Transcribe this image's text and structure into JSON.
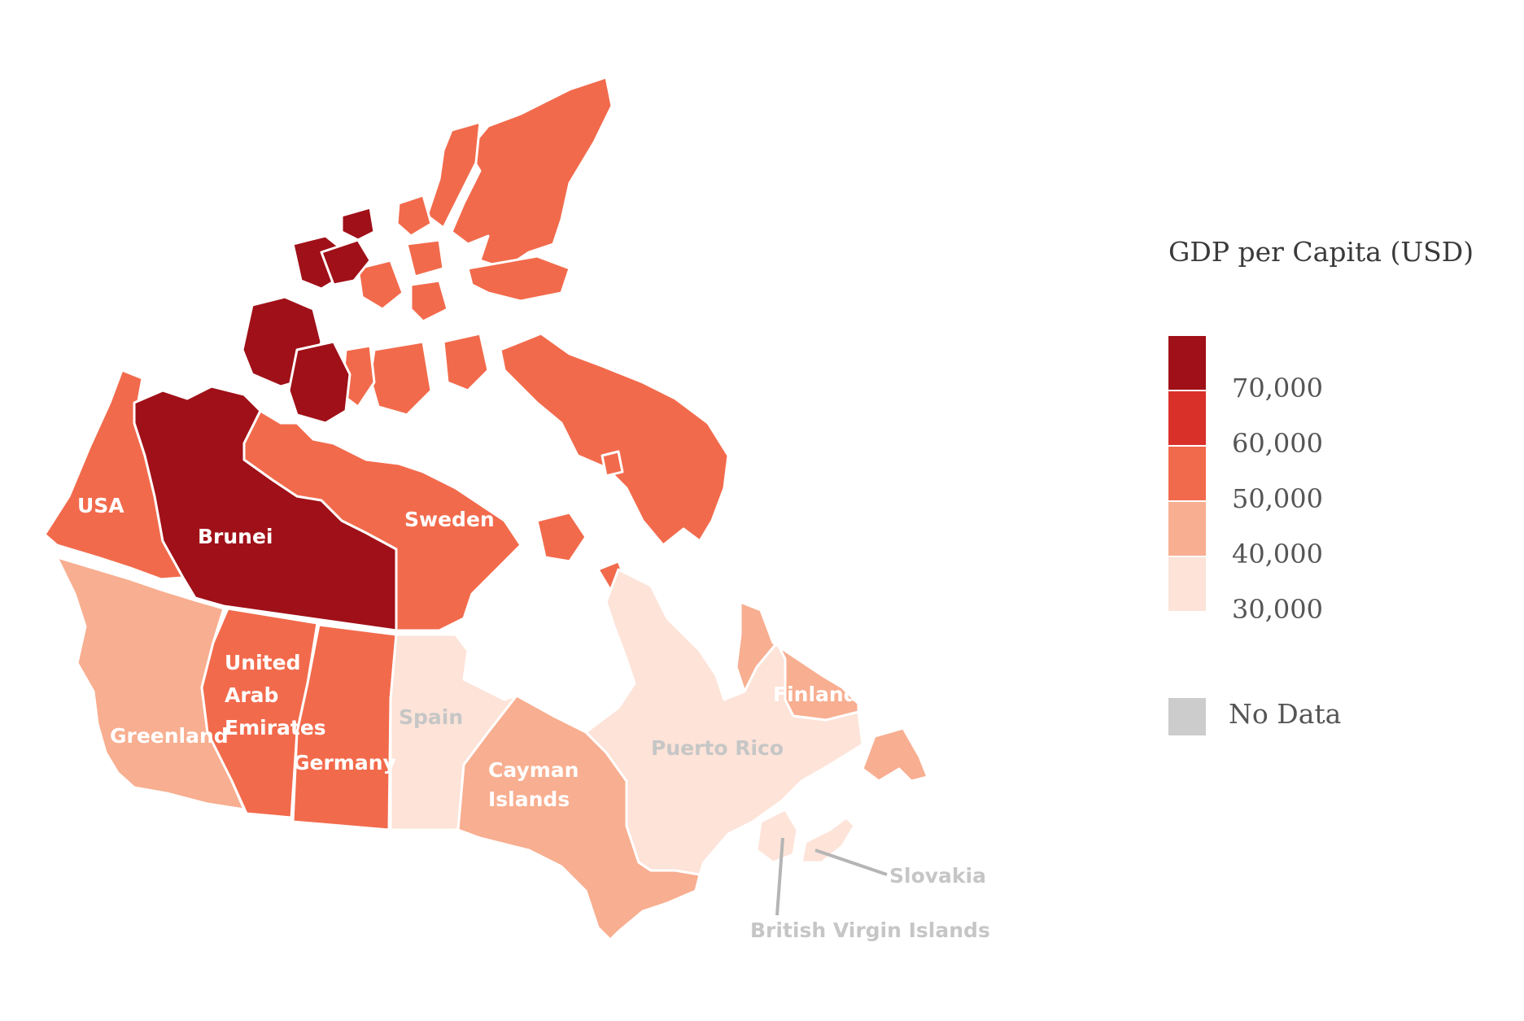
{
  "legend": {
    "title": "GDP per Capita (USD)",
    "colors": [
      "#a01018",
      "#d9302a",
      "#f26a4c",
      "#f8ae90",
      "#fde3d8"
    ],
    "ticks": [
      "70,000",
      "60,000",
      "50,000",
      "40,000",
      "30,000"
    ],
    "no_data_label": "No Data",
    "no_data_color": "#cccccc"
  },
  "regions": [
    {
      "province": "Yukon",
      "label": "USA",
      "tier": 2
    },
    {
      "province": "Northwest Territories",
      "label": "Brunei",
      "tier": 0
    },
    {
      "province": "Nunavut",
      "label": "Sweden",
      "tier": 2
    },
    {
      "province": "British Columbia",
      "label": "Greenland",
      "tier": 3
    },
    {
      "province": "Alberta",
      "label": "United Arab Emirates",
      "tier": 2
    },
    {
      "province": "Saskatchewan",
      "label": "Germany",
      "tier": 2
    },
    {
      "province": "Manitoba",
      "label": "Spain",
      "tier": 4
    },
    {
      "province": "Ontario",
      "label": "Cayman Islands",
      "tier": 3
    },
    {
      "province": "Quebec",
      "label": "Puerto Rico",
      "tier": 4
    },
    {
      "province": "Newfoundland and Labrador",
      "label": "Finland",
      "tier": 3
    },
    {
      "province": "New Brunswick",
      "label": "British Virgin Islands",
      "tier": 4
    },
    {
      "province": "Nova Scotia",
      "label": "Slovakia",
      "tier": 4
    }
  ]
}
